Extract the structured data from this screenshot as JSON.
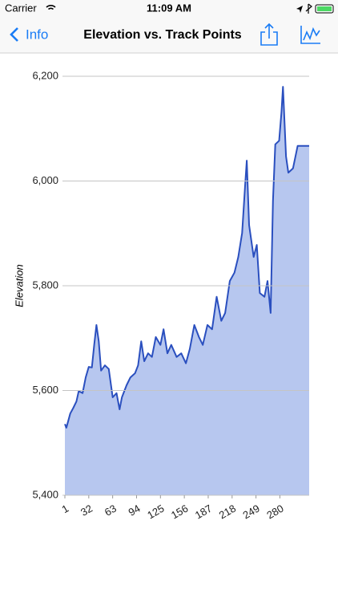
{
  "status_bar": {
    "carrier": "Carrier",
    "time": "11:09 AM"
  },
  "nav_bar": {
    "back": "Info",
    "title": "Elevation vs. Track Points"
  },
  "chart_data": {
    "type": "area",
    "y_label": "Elevation",
    "x": [
      1,
      3,
      8,
      12,
      16,
      19,
      24,
      28,
      32,
      36,
      39,
      42,
      45,
      48,
      53,
      58,
      63,
      68,
      72,
      75,
      81,
      86,
      92,
      96,
      100,
      104,
      109,
      114,
      119,
      125,
      129,
      134,
      139,
      146,
      152,
      158,
      163,
      169,
      175,
      180,
      186,
      192,
      198,
      204,
      209,
      215,
      221,
      226,
      231,
      235,
      237,
      240,
      246,
      250,
      254,
      260,
      264,
      268,
      271,
      274,
      279,
      282,
      284,
      288,
      291,
      297,
      303,
      318
    ],
    "values": [
      5536,
      5529,
      5556,
      5567,
      5579,
      5599,
      5595,
      5625,
      5645,
      5644,
      5687,
      5725,
      5694,
      5638,
      5648,
      5641,
      5587,
      5595,
      5564,
      5587,
      5610,
      5625,
      5633,
      5648,
      5694,
      5656,
      5671,
      5664,
      5702,
      5687,
      5717,
      5671,
      5687,
      5664,
      5671,
      5652,
      5679,
      5725,
      5702,
      5687,
      5725,
      5717,
      5779,
      5733,
      5748,
      5809,
      5825,
      5855,
      5901,
      5993,
      6039,
      5916,
      5855,
      5878,
      5786,
      5779,
      5809,
      5748,
      5962,
      6070,
      6077,
      6131,
      6180,
      6047,
      6016,
      6024,
      6067,
      6067
    ],
    "color": "#2a4fbf",
    "fill": "#b7c7ef",
    "xlim": [
      1,
      318
    ],
    "ylim": [
      5400,
      6200
    ],
    "xticks": [
      1,
      32,
      63,
      94,
      125,
      156,
      187,
      218,
      249,
      280
    ],
    "yticks": [
      {
        "value": 5400,
        "label": "5,400"
      },
      {
        "value": 5600,
        "label": "5,600"
      },
      {
        "value": 5800,
        "label": "5,800"
      },
      {
        "value": 6000,
        "label": "6,000"
      },
      {
        "value": 6200,
        "label": "6,200"
      }
    ],
    "grid": true
  }
}
